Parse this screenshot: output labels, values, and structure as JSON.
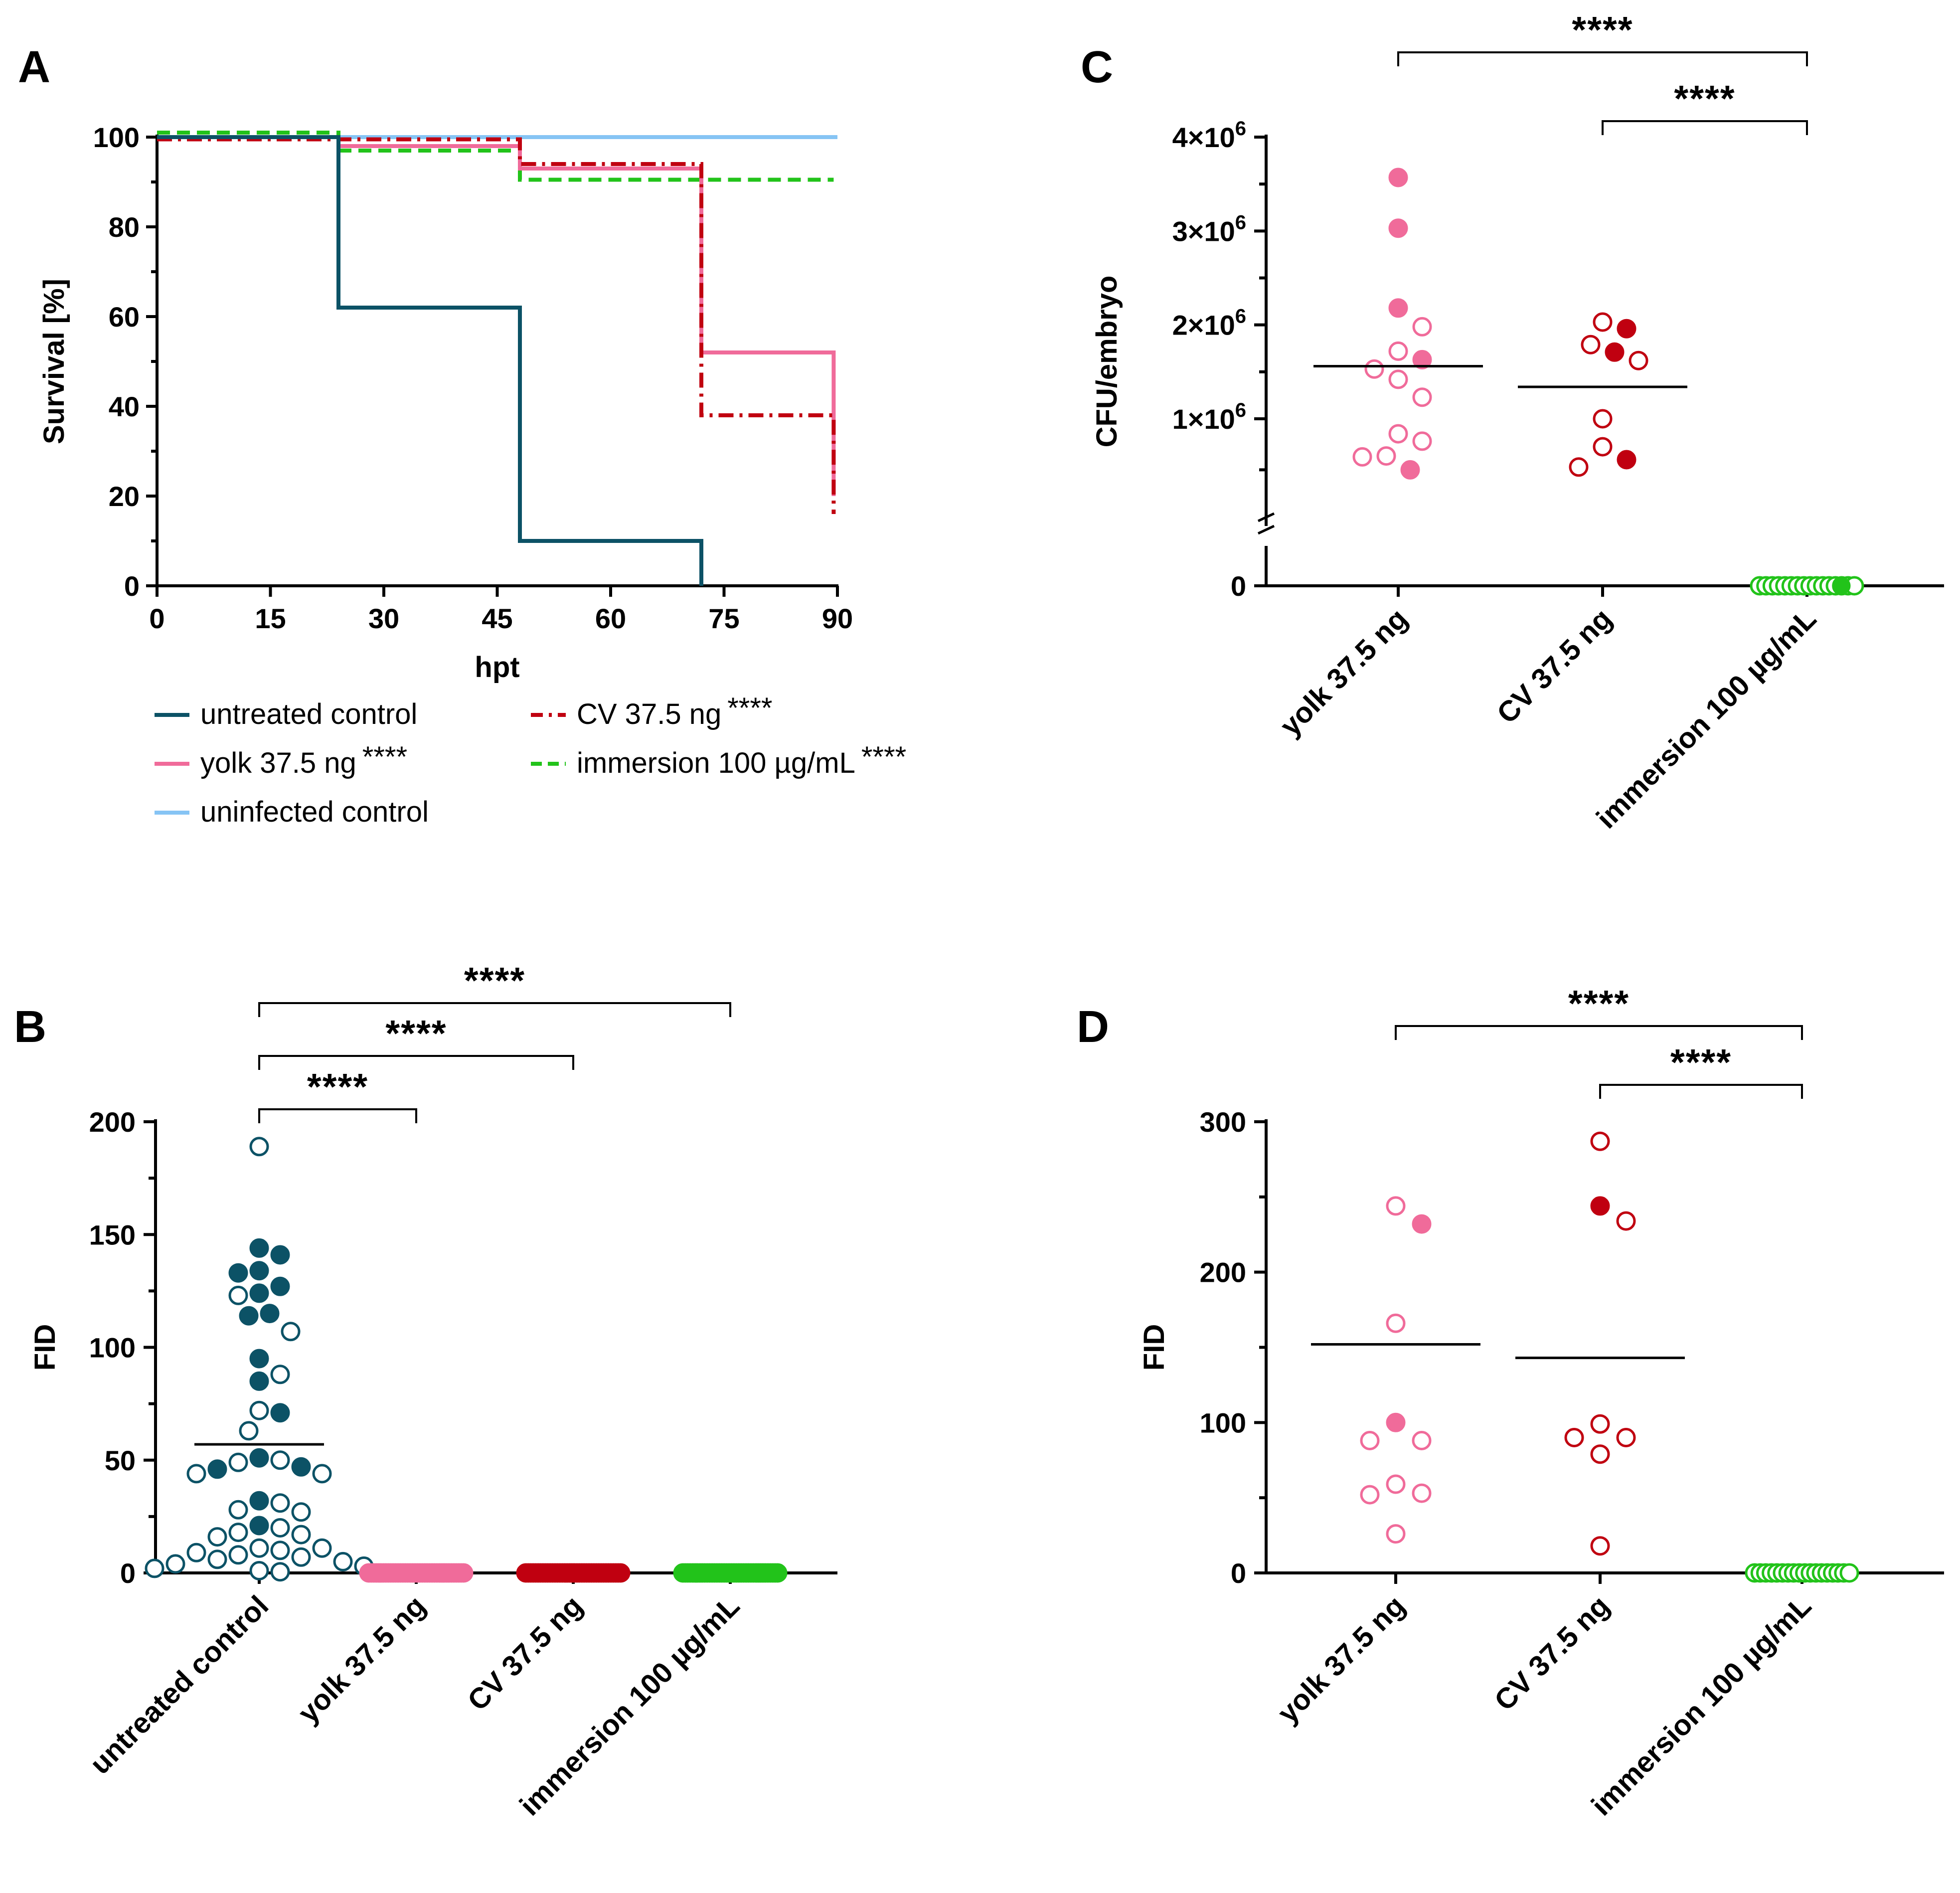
{
  "colors": {
    "untreated": "#0c5266",
    "yolk": "#f06b9a",
    "cv": "#c00010",
    "immersion": "#22c31a",
    "uninfected": "#86c4f4",
    "text": "#000000"
  },
  "chart_data": [
    {
      "panel": "A",
      "type": "line",
      "subtype": "kaplan-meier",
      "xlabel": "hpt",
      "ylabel": "Survival [%]",
      "xlim": [
        0,
        90
      ],
      "ylim": [
        0,
        100
      ],
      "xticks": [
        "0",
        "15",
        "30",
        "45",
        "60",
        "75",
        "90"
      ],
      "yticks": [
        "0",
        "20",
        "40",
        "60",
        "80",
        "100"
      ],
      "legend_position": "bottom",
      "series": [
        {
          "key": "untreated",
          "name": "untreated control",
          "stars": "",
          "style": "solid",
          "x": [
            0,
            24,
            24,
            48,
            48,
            72,
            72
          ],
          "y": [
            100,
            100,
            62,
            62,
            10,
            10,
            0
          ]
        },
        {
          "key": "yolk",
          "name": "yolk 37.5 ng",
          "stars": "****",
          "style": "solid",
          "x": [
            0,
            24,
            24,
            48,
            48,
            72,
            72,
            89.5,
            89.5
          ],
          "y": [
            100,
            100,
            98,
            98,
            93,
            93,
            52,
            52,
            20
          ]
        },
        {
          "key": "uninfected",
          "name": "uninfected control",
          "stars": "",
          "style": "solid",
          "x": [
            0,
            90
          ],
          "y": [
            100,
            100
          ]
        },
        {
          "key": "cv",
          "name": "CV 37.5 ng",
          "stars": "****",
          "style": "dashdot",
          "x": [
            0,
            48,
            48,
            72,
            72,
            89.5,
            89.5
          ],
          "y": [
            99.5,
            99.5,
            94,
            94,
            38,
            38,
            16
          ]
        },
        {
          "key": "immersion",
          "name": "immersion 100 µg/mL",
          "stars": "****",
          "style": "dashed",
          "x": [
            0,
            24,
            24,
            48,
            48,
            89.5
          ],
          "y": [
            101,
            101,
            97,
            97,
            90.5,
            90.5
          ]
        }
      ]
    },
    {
      "panel": "B",
      "type": "scatter",
      "subtype": "dot-plot",
      "ylabel": "FID",
      "ylim": [
        0,
        200
      ],
      "yticks": [
        "0",
        "50",
        "100",
        "150",
        "200"
      ],
      "categories": [
        "untreated control",
        "yolk 37.5 ng",
        "CV 37.5 ng",
        "immersion 100 µg/mL"
      ],
      "significance": [
        {
          "from": 0,
          "to": 1,
          "label": "****"
        },
        {
          "from": 0,
          "to": 2,
          "label": "****"
        },
        {
          "from": 0,
          "to": 3,
          "label": "****"
        }
      ],
      "groups": [
        {
          "key": "untreated",
          "category": "untreated control",
          "mean": 57,
          "points": [
            {
              "v": 189,
              "f": false
            },
            {
              "v": 144,
              "f": true
            },
            {
              "v": 141,
              "f": true
            },
            {
              "v": 134,
              "f": true
            },
            {
              "v": 133,
              "f": true
            },
            {
              "v": 127,
              "f": true
            },
            {
              "v": 124,
              "f": true
            },
            {
              "v": 123,
              "f": false
            },
            {
              "v": 115,
              "f": true
            },
            {
              "v": 114,
              "f": true
            },
            {
              "v": 107,
              "f": false
            },
            {
              "v": 95,
              "f": true
            },
            {
              "v": 88,
              "f": false
            },
            {
              "v": 85,
              "f": true
            },
            {
              "v": 72,
              "f": false
            },
            {
              "v": 71,
              "f": true
            },
            {
              "v": 63,
              "f": false
            },
            {
              "v": 51,
              "f": true
            },
            {
              "v": 50,
              "f": false
            },
            {
              "v": 49,
              "f": false
            },
            {
              "v": 47,
              "f": true
            },
            {
              "v": 46,
              "f": true
            },
            {
              "v": 44,
              "f": false
            },
            {
              "v": 44,
              "f": false
            },
            {
              "v": 32,
              "f": true
            },
            {
              "v": 31,
              "f": false
            },
            {
              "v": 28,
              "f": false
            },
            {
              "v": 27,
              "f": false
            },
            {
              "v": 21,
              "f": true
            },
            {
              "v": 20,
              "f": false
            },
            {
              "v": 18,
              "f": false
            },
            {
              "v": 17,
              "f": false
            },
            {
              "v": 16,
              "f": false
            },
            {
              "v": 11,
              "f": false
            },
            {
              "v": 11,
              "f": false
            },
            {
              "v": 10,
              "f": false
            },
            {
              "v": 9,
              "f": false
            },
            {
              "v": 8,
              "f": false
            },
            {
              "v": 7,
              "f": false
            },
            {
              "v": 6,
              "f": false
            },
            {
              "v": 5,
              "f": false
            },
            {
              "v": 4,
              "f": false
            },
            {
              "v": 3,
              "f": false
            },
            {
              "v": 2,
              "f": false
            },
            {
              "v": 1,
              "f": false
            },
            {
              "v": 0.5,
              "f": false
            }
          ]
        },
        {
          "key": "yolk",
          "category": "yolk 37.5 ng",
          "mean": 0,
          "zero_count": 40,
          "points": []
        },
        {
          "key": "cv",
          "category": "CV 37.5 ng",
          "mean": 0,
          "zero_count": 40,
          "points": []
        },
        {
          "key": "immersion",
          "category": "immersion 100 µg/mL",
          "mean": 0,
          "zero_count": 40,
          "points": []
        }
      ]
    },
    {
      "panel": "C",
      "type": "scatter",
      "subtype": "dot-plot",
      "ylabel": "CFU/embryo",
      "ylim": [
        0,
        4000000
      ],
      "axis_break": true,
      "yticks": [
        {
          "v": 0,
          "base": "0",
          "exp": ""
        },
        {
          "v": 1000000,
          "base": "1×10",
          "exp": "6"
        },
        {
          "v": 2000000,
          "base": "2×10",
          "exp": "6"
        },
        {
          "v": 3000000,
          "base": "3×10",
          "exp": "6"
        },
        {
          "v": 4000000,
          "base": "4×10",
          "exp": "6"
        }
      ],
      "categories": [
        "yolk 37.5 ng",
        "CV 37.5 ng",
        "immersion 100 µg/mL"
      ],
      "significance": [
        {
          "from": 0,
          "to": 2,
          "label": "****"
        },
        {
          "from": 1,
          "to": 2,
          "label": "****"
        }
      ],
      "groups": [
        {
          "key": "yolk",
          "category": "yolk 37.5 ng",
          "mean": 1560000,
          "points": [
            {
              "v": 3570000,
              "f": true
            },
            {
              "v": 3030000,
              "f": true
            },
            {
              "v": 2180000,
              "f": true
            },
            {
              "v": 1980000,
              "f": false
            },
            {
              "v": 1720000,
              "f": false
            },
            {
              "v": 1630000,
              "f": true
            },
            {
              "v": 1530000,
              "f": false
            },
            {
              "v": 1420000,
              "f": false
            },
            {
              "v": 1230000,
              "f": false
            },
            {
              "v": 890000,
              "f": false
            },
            {
              "v": 810000,
              "f": false
            },
            {
              "v": 650000,
              "f": false
            },
            {
              "v": 640000,
              "f": false
            },
            {
              "v": 500000,
              "f": true
            }
          ]
        },
        {
          "key": "cv",
          "category": "CV 37.5 ng",
          "mean": 1340000,
          "points": [
            {
              "v": 2030000,
              "f": false
            },
            {
              "v": 1960000,
              "f": true
            },
            {
              "v": 1790000,
              "f": false
            },
            {
              "v": 1710000,
              "f": true
            },
            {
              "v": 1620000,
              "f": false
            },
            {
              "v": 1000000,
              "f": false
            },
            {
              "v": 750000,
              "f": false
            },
            {
              "v": 610000,
              "f": true
            },
            {
              "v": 530000,
              "f": false
            }
          ]
        },
        {
          "key": "immersion",
          "category": "immersion 100 µg/mL",
          "mean": 0,
          "zero_count": 16,
          "points": []
        }
      ]
    },
    {
      "panel": "D",
      "type": "scatter",
      "subtype": "dot-plot",
      "ylabel": "FID",
      "ylim": [
        0,
        300
      ],
      "yticks": [
        "0",
        "100",
        "200",
        "300"
      ],
      "categories": [
        "yolk 37.5 ng",
        "CV 37.5 ng",
        "immersion 100 µg/mL"
      ],
      "significance": [
        {
          "from": 0,
          "to": 2,
          "label": "****"
        },
        {
          "from": 1,
          "to": 2,
          "label": "****"
        }
      ],
      "groups": [
        {
          "key": "yolk",
          "category": "yolk 37.5 ng",
          "mean": 152,
          "points": [
            {
              "v": 244,
              "f": false
            },
            {
              "v": 232,
              "f": true
            },
            {
              "v": 166,
              "f": false
            },
            {
              "v": 100,
              "f": true
            },
            {
              "v": 88,
              "f": false
            },
            {
              "v": 88,
              "f": false
            },
            {
              "v": 59,
              "f": false
            },
            {
              "v": 53,
              "f": false
            },
            {
              "v": 52,
              "f": false
            },
            {
              "v": 26,
              "f": false
            }
          ]
        },
        {
          "key": "cv",
          "category": "CV 37.5 ng",
          "mean": 143,
          "points": [
            {
              "v": 287,
              "f": false
            },
            {
              "v": 244,
              "f": true
            },
            {
              "v": 234,
              "f": false
            },
            {
              "v": 99,
              "f": false
            },
            {
              "v": 90,
              "f": false
            },
            {
              "v": 90,
              "f": false
            },
            {
              "v": 79,
              "f": false
            },
            {
              "v": 18,
              "f": false
            }
          ]
        },
        {
          "key": "immersion",
          "category": "immersion 100 µg/mL",
          "mean": 0,
          "zero_count": 18,
          "points": []
        }
      ]
    }
  ]
}
